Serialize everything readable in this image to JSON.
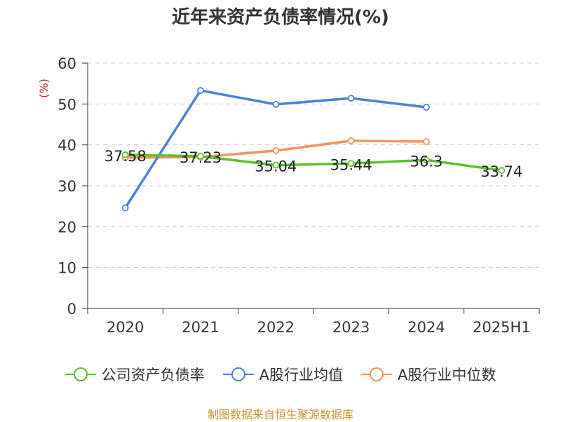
{
  "chart_data": {
    "type": "line",
    "title": "近年来资产负债率情况(%)",
    "ylabel": "(%)",
    "xlabel": "",
    "categories": [
      "2020",
      "2021",
      "2022",
      "2023",
      "2024",
      "2025H1"
    ],
    "ylim": [
      0,
      60
    ],
    "yticks": [
      0,
      10,
      20,
      30,
      40,
      50,
      60
    ],
    "grid": true,
    "legend_position": "bottom",
    "series": [
      {
        "name": "公司资产负债率",
        "color": "#5cc12b",
        "values": [
          37.58,
          37.23,
          35.04,
          35.44,
          36.3,
          33.74
        ],
        "labels": [
          "37.58",
          "37.23",
          "35.04",
          "35.44",
          "36.3",
          "33.74"
        ]
      },
      {
        "name": "A股行业均值",
        "color": "#4c7fdc",
        "values": [
          24.6,
          53.3,
          49.9,
          51.4,
          49.2,
          null
        ]
      },
      {
        "name": "A股行业中位数",
        "color": "#f5925e",
        "values": [
          36.9,
          37.0,
          38.6,
          41.0,
          40.8,
          null
        ]
      }
    ]
  },
  "source": {
    "text": "制图数据来自恒生聚源数据库",
    "color": "#c89232"
  },
  "ylabel_color": "#cc2222"
}
